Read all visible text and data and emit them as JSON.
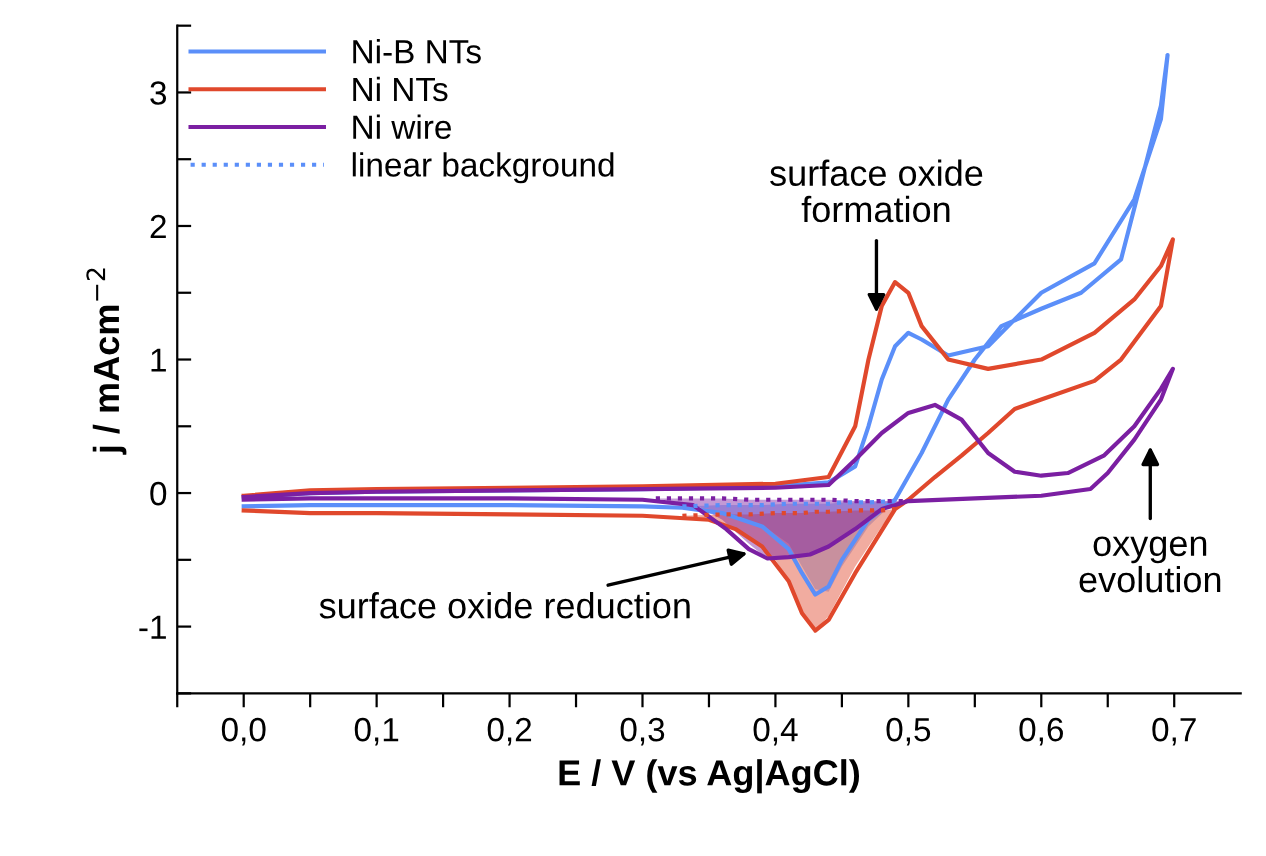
{
  "chart_data": {
    "type": "line",
    "xlabel": "E / V (vs Ag|AgCl)",
    "ylabel": "j / mAcm$^{−2}$",
    "xlim": [
      -0.05,
      0.75
    ],
    "ylim": [
      -1.5,
      3.5
    ],
    "xticks": [
      {
        "value": -0.05,
        "label": null
      },
      {
        "value": 0.0,
        "label": "0,0"
      },
      {
        "value": 0.05,
        "label": null
      },
      {
        "value": 0.1,
        "label": "0,1"
      },
      {
        "value": 0.15,
        "label": null
      },
      {
        "value": 0.2,
        "label": "0,2"
      },
      {
        "value": 0.25,
        "label": null
      },
      {
        "value": 0.3,
        "label": "0,3"
      },
      {
        "value": 0.35,
        "label": null
      },
      {
        "value": 0.4,
        "label": "0,4"
      },
      {
        "value": 0.45,
        "label": null
      },
      {
        "value": 0.5,
        "label": "0,5"
      },
      {
        "value": 0.55,
        "label": null
      },
      {
        "value": 0.6,
        "label": "0,6"
      },
      {
        "value": 0.65,
        "label": null
      },
      {
        "value": 0.7,
        "label": "0,7"
      }
    ],
    "yticks": [
      {
        "value": -1.5,
        "label": null
      },
      {
        "value": -1,
        "label": "-1"
      },
      {
        "value": -0.5,
        "label": null
      },
      0,
      {
        "value": 0.5,
        "label": null
      },
      1,
      {
        "value": 1.5,
        "label": null
      },
      2,
      {
        "value": 2.5,
        "label": null
      },
      3,
      {
        "value": 3.5,
        "label": null
      }
    ],
    "grid": false,
    "legend": "top left",
    "marker": "none",
    "series": [
      {
        "name": "Ni-B NTs",
        "color": "#5b8ff9",
        "line_style": "solid",
        "x": [
          0.0,
          0.05,
          0.1,
          0.2,
          0.3,
          0.4,
          0.44,
          0.46,
          0.47,
          0.48,
          0.49,
          0.5,
          0.51,
          0.53,
          0.56,
          0.6,
          0.64,
          0.67,
          0.69,
          0.695,
          0.69,
          0.66,
          0.63,
          0.6,
          0.57,
          0.55,
          0.53,
          0.51,
          0.49,
          0.47,
          0.45,
          0.44,
          0.43,
          0.42,
          0.41,
          0.39,
          0.36,
          0.33,
          0.3,
          0.2,
          0.1,
          0.05,
          0.0
        ],
        "values": [
          -0.03,
          0.0,
          0.01,
          0.02,
          0.03,
          0.05,
          0.08,
          0.2,
          0.5,
          0.85,
          1.1,
          1.2,
          1.15,
          1.03,
          1.1,
          1.5,
          1.72,
          2.2,
          2.8,
          3.28,
          2.9,
          1.75,
          1.5,
          1.38,
          1.25,
          1.0,
          0.7,
          0.3,
          -0.05,
          -0.2,
          -0.5,
          -0.7,
          -0.76,
          -0.6,
          -0.42,
          -0.25,
          -0.15,
          -0.11,
          -0.1,
          -0.09,
          -0.09,
          -0.09,
          -0.1
        ]
      },
      {
        "name": "Ni NTs",
        "color": "#e0482c",
        "line_style": "solid",
        "x": [
          0.0,
          0.05,
          0.1,
          0.2,
          0.3,
          0.4,
          0.44,
          0.46,
          0.47,
          0.48,
          0.49,
          0.5,
          0.51,
          0.53,
          0.56,
          0.6,
          0.64,
          0.67,
          0.69,
          0.699,
          0.69,
          0.66,
          0.64,
          0.6,
          0.58,
          0.56,
          0.54,
          0.52,
          0.5,
          0.49,
          0.475,
          0.46,
          0.44,
          0.43,
          0.42,
          0.41,
          0.39,
          0.37,
          0.35,
          0.3,
          0.2,
          0.1,
          0.05,
          0.0
        ],
        "values": [
          -0.02,
          0.02,
          0.03,
          0.04,
          0.05,
          0.07,
          0.12,
          0.5,
          1.0,
          1.4,
          1.58,
          1.5,
          1.25,
          1.0,
          0.93,
          1.0,
          1.2,
          1.45,
          1.7,
          1.9,
          1.4,
          1.0,
          0.84,
          0.7,
          0.63,
          0.45,
          0.28,
          0.12,
          -0.05,
          -0.12,
          -0.36,
          -0.6,
          -0.95,
          -1.03,
          -0.9,
          -0.66,
          -0.4,
          -0.27,
          -0.2,
          -0.17,
          -0.16,
          -0.15,
          -0.15,
          -0.13
        ]
      },
      {
        "name": "Ni wire",
        "color": "#7b1fa2",
        "line_style": "solid",
        "x": [
          0.0,
          0.05,
          0.1,
          0.2,
          0.3,
          0.4,
          0.44,
          0.46,
          0.48,
          0.5,
          0.52,
          0.54,
          0.56,
          0.58,
          0.6,
          0.62,
          0.647,
          0.67,
          0.69,
          0.699,
          0.69,
          0.67,
          0.65,
          0.637,
          0.6,
          0.55,
          0.5,
          0.48,
          0.46,
          0.44,
          0.426,
          0.41,
          0.394,
          0.38,
          0.363,
          0.338,
          0.3,
          0.2,
          0.1,
          0.05,
          0.0
        ],
        "values": [
          -0.03,
          0.0,
          0.01,
          0.02,
          0.03,
          0.04,
          0.06,
          0.25,
          0.45,
          0.6,
          0.66,
          0.55,
          0.3,
          0.16,
          0.13,
          0.15,
          0.28,
          0.5,
          0.78,
          0.93,
          0.7,
          0.4,
          0.15,
          0.03,
          -0.02,
          -0.04,
          -0.06,
          -0.12,
          -0.27,
          -0.4,
          -0.46,
          -0.48,
          -0.49,
          -0.42,
          -0.27,
          -0.09,
          -0.05,
          -0.04,
          -0.04,
          -0.04,
          -0.05
        ]
      },
      {
        "name": "linear background",
        "color": "#5b8ff9",
        "line_style": "dotted",
        "x": [
          0.33,
          0.36,
          0.39,
          0.41,
          0.42,
          0.43,
          0.44,
          0.45,
          0.47,
          0.49
        ],
        "values": [
          -0.1,
          -0.09,
          -0.09,
          -0.08,
          -0.08,
          -0.08,
          -0.08,
          -0.07,
          -0.07,
          -0.06
        ],
        "lower": [
          -0.1,
          -0.14,
          -0.24,
          -0.38,
          -0.55,
          -0.72,
          -0.74,
          -0.55,
          -0.25,
          -0.06
        ],
        "upper": [
          -0.1,
          -0.09,
          -0.09,
          -0.08,
          -0.08,
          -0.08,
          -0.08,
          -0.07,
          -0.07,
          -0.06
        ]
      },
      {
        "color": "#e0482c",
        "line_style": "dotted",
        "x": [
          0.33,
          0.36,
          0.38,
          0.4,
          0.41,
          0.42,
          0.43,
          0.44,
          0.46,
          0.48,
          0.49
        ],
        "values": [
          -0.17,
          -0.16,
          -0.16,
          -0.15,
          -0.15,
          -0.15,
          -0.14,
          -0.14,
          -0.13,
          -0.13,
          -0.12
        ],
        "lower": [
          -0.17,
          -0.22,
          -0.32,
          -0.5,
          -0.66,
          -0.9,
          -1.03,
          -0.92,
          -0.55,
          -0.25,
          -0.12
        ],
        "upper": [
          -0.17,
          -0.16,
          -0.16,
          -0.15,
          -0.15,
          -0.15,
          -0.14,
          -0.14,
          -0.13,
          -0.13,
          -0.12
        ]
      },
      {
        "color": "#7b1fa2",
        "line_style": "dotted",
        "x": [
          0.31,
          0.34,
          0.36,
          0.38,
          0.39,
          0.4,
          0.42,
          0.44,
          0.46,
          0.48,
          0.5
        ],
        "values": [
          -0.04,
          -0.04,
          -0.04,
          -0.05,
          -0.05,
          -0.05,
          -0.05,
          -0.05,
          -0.06,
          -0.06,
          -0.06
        ],
        "lower": [
          -0.04,
          -0.09,
          -0.2,
          -0.38,
          -0.46,
          -0.49,
          -0.47,
          -0.4,
          -0.27,
          -0.12,
          -0.06
        ],
        "upper": [
          -0.04,
          -0.04,
          -0.04,
          -0.05,
          -0.05,
          -0.05,
          -0.05,
          -0.05,
          -0.06,
          -0.06,
          -0.06
        ]
      }
    ],
    "annotations": [
      {
        "text": "surface oxide\nformation",
        "x": 0.476,
        "y": 1.35
      },
      "oxygen\nevolution",
      {
        "text": "surface oxide reduction",
        "x": 0.379,
        "y": -0.45
      }
    ]
  }
}
